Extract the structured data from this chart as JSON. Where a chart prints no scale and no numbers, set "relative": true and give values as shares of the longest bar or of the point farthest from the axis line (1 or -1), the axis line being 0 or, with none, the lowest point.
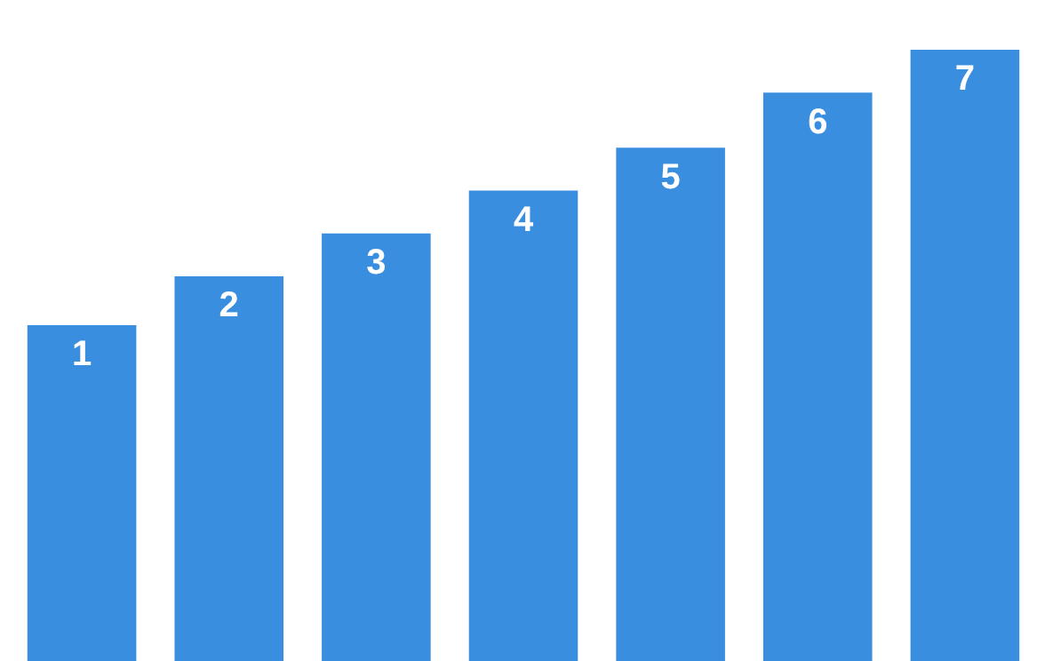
{
  "chart_data": {
    "type": "bar",
    "relative": true,
    "categories": [
      "1",
      "2",
      "3",
      "4",
      "5",
      "6",
      "7"
    ],
    "values": [
      0.55,
      0.63,
      0.7,
      0.77,
      0.84,
      0.93,
      1.0
    ],
    "color": "#3a8ee0"
  }
}
